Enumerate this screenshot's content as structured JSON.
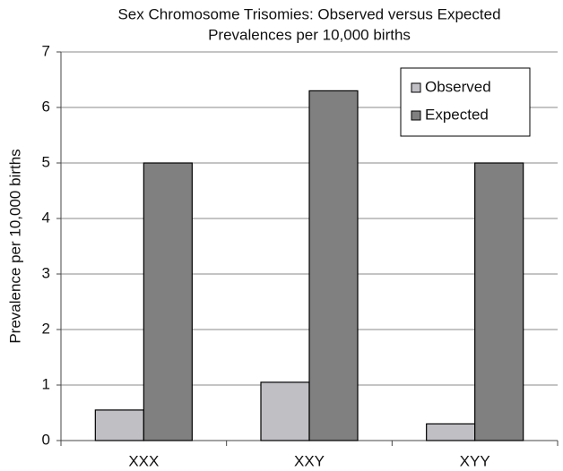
{
  "chart_data": {
    "type": "bar",
    "title": "Sex Chromosome Trisomies: Observed versus Expected",
    "subtitle": "Prevalences per 10,000 births",
    "y_label": "Prevalence per 10,000 births",
    "categories": [
      "XXX",
      "XXY",
      "XYY"
    ],
    "series": [
      {
        "name": "Observed",
        "color": "#c0c0c4",
        "values": [
          0.55,
          1.05,
          0.3
        ]
      },
      {
        "name": "Expected",
        "color": "#808080",
        "values": [
          5,
          6.3,
          5
        ]
      }
    ],
    "ylim": [
      0,
      7
    ],
    "yticks": [
      0,
      1,
      2,
      3,
      4,
      5,
      6,
      7
    ],
    "grid": true,
    "legend": "upper right"
  }
}
